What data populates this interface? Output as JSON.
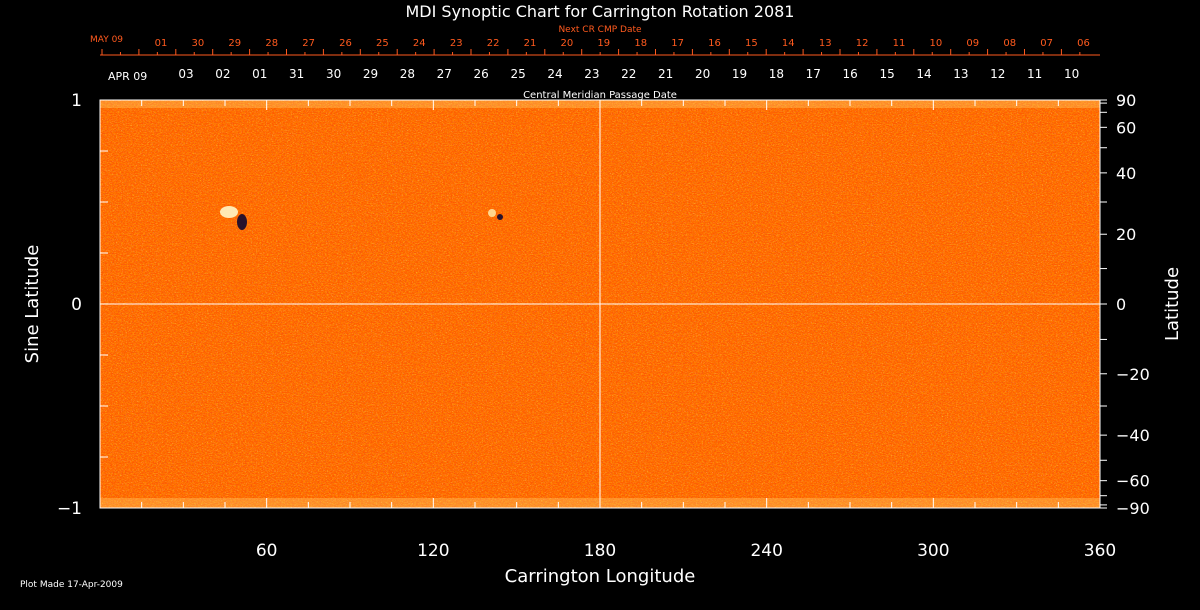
{
  "chart_data": {
    "type": "heatmap",
    "title": "MDI Synoptic Chart for Carrington Rotation 2081",
    "xlabel": "Carrington Longitude",
    "ylabel_left": "Sine Latitude",
    "ylabel_right": "Latitude",
    "xlim": [
      0,
      360
    ],
    "ylim": [
      -1,
      1
    ],
    "x_ticks": [
      60,
      120,
      180,
      240,
      300,
      360
    ],
    "y_ticks_left": [
      {
        "value": 1,
        "label": "1"
      },
      {
        "value": 0,
        "label": "0"
      },
      {
        "value": -1,
        "label": "−1"
      }
    ],
    "y_ticks_right": [
      {
        "value": 90,
        "label": "90"
      },
      {
        "value": 60,
        "label": "60"
      },
      {
        "value": 40,
        "label": "40"
      },
      {
        "value": 20,
        "label": "20"
      },
      {
        "value": 0,
        "label": "0"
      },
      {
        "value": -20,
        "label": "−20"
      },
      {
        "value": -40,
        "label": "−40"
      },
      {
        "value": -60,
        "label": "−60"
      },
      {
        "value": -90,
        "label": "−90"
      }
    ],
    "cmp_axis": {
      "label": "Central Meridian Passage Date",
      "month_label": "APR 09",
      "dates": [
        "03",
        "02",
        "01",
        "31",
        "30",
        "29",
        "28",
        "27",
        "26",
        "25",
        "24",
        "23",
        "22",
        "21",
        "20",
        "19",
        "18",
        "17",
        "16",
        "15",
        "14",
        "13",
        "12",
        "11",
        "10"
      ]
    },
    "next_cr_axis": {
      "label": "Next CR CMP Date",
      "month_label": "MAY 09",
      "dates": [
        "01",
        "30",
        "29",
        "28",
        "27",
        "26",
        "25",
        "24",
        "23",
        "22",
        "21",
        "20",
        "19",
        "18",
        "17",
        "16",
        "15",
        "14",
        "13",
        "12",
        "11",
        "10",
        "09",
        "08",
        "07",
        "06"
      ]
    },
    "colors": {
      "background": "#000000",
      "field_base": "#ff5a00",
      "field_high": "#ffe060",
      "field_low": "#2a1060",
      "label_orange": "#ff5a1e",
      "text": "#ffffff"
    },
    "gridlines": {
      "vertical_at_longitude": 180,
      "horizontal_at_sine_latitude": 0
    }
  },
  "footer": {
    "plot_made": "Plot Made 17-Apr-2009"
  }
}
